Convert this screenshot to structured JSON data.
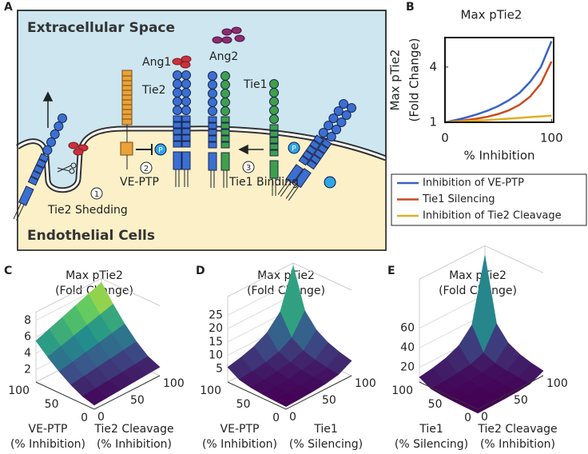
{
  "diagram": {
    "label": "A",
    "regions": [
      "Extracellular Space",
      "Endothelial Cells"
    ],
    "proteins": [
      "Ang1",
      "Ang2",
      "Tie2",
      "Tie1"
    ],
    "phospho": "P",
    "steps": [
      {
        "number": 1,
        "name": "Tie2 Shedding"
      },
      {
        "number": 2,
        "name": "VE-PTP"
      },
      {
        "number": 3,
        "name": "Tie1 Binding"
      }
    ]
  },
  "chart_data": [
    {
      "label": "B",
      "type": "line",
      "title": "Max pTie2",
      "ylabel": [
        "Max pTie2",
        "(Fold Change)"
      ],
      "xlabel": "% Inhibition",
      "x": [
        0,
        10,
        20,
        30,
        40,
        50,
        60,
        70,
        80,
        90,
        100
      ],
      "series": [
        {
          "name": "Inhibition of VE-PTP",
          "color": "#3a62c4",
          "values": [
            1,
            1.12,
            1.26,
            1.43,
            1.63,
            1.88,
            2.2,
            2.6,
            3.2,
            4.0,
            5.4
          ]
        },
        {
          "name": "Tie1 Silencing",
          "color": "#cc4a21",
          "values": [
            1,
            1.05,
            1.12,
            1.2,
            1.3,
            1.45,
            1.65,
            1.95,
            2.4,
            3.1,
            4.3
          ]
        },
        {
          "name": "Inhibition of Tie2 Cleavage",
          "color": "#e0b020",
          "values": [
            1,
            1.03,
            1.06,
            1.09,
            1.12,
            1.16,
            1.2,
            1.24,
            1.28,
            1.32,
            1.36
          ]
        }
      ],
      "xlim": [
        0,
        102
      ],
      "ylim": [
        1,
        5.6
      ],
      "xticks": [
        0,
        100
      ],
      "yticks": [
        1,
        4
      ],
      "legend": "below"
    },
    {
      "label": "C",
      "type": "surface",
      "title": [
        "Max pTie2",
        "(Fold Change)"
      ],
      "xlabel": [
        "VE-PTP",
        "(% Inhibition)"
      ],
      "ylabel": [
        "Tie2 Cleavage",
        "(% Inhibition)"
      ],
      "x": [
        0,
        20,
        40,
        60,
        80,
        100
      ],
      "y": [
        0,
        20,
        40,
        60,
        80,
        100
      ],
      "z": [
        [
          1,
          1.11,
          1.22,
          1.33,
          1.44,
          1.55
        ],
        [
          1.4,
          1.55,
          1.71,
          1.86,
          2.02,
          2.17
        ],
        [
          2.14,
          2.38,
          2.61,
          2.85,
          3.08,
          3.32
        ],
        [
          3.09,
          3.43,
          3.77,
          4.11,
          4.45,
          4.79
        ],
        [
          4.22,
          4.68,
          5.15,
          5.61,
          6.08,
          6.54
        ],
        [
          5.5,
          6.11,
          6.71,
          7.32,
          7.92,
          8.53
        ]
      ],
      "xlim": [
        0,
        100
      ],
      "ylim": [
        0,
        100
      ],
      "zlim": [
        0.5,
        9
      ],
      "xticks": [
        0,
        50,
        100
      ],
      "yticks": [
        0,
        50,
        100
      ],
      "zticks": [
        2,
        4,
        6,
        8
      ],
      "colormap": "viridis"
    },
    {
      "label": "D",
      "type": "surface",
      "title": [
        "Max pTie2",
        "(Fold Change)"
      ],
      "xlabel": [
        "VE-PTP",
        "(% Inhibition)"
      ],
      "ylabel": [
        "Tie1",
        "(% Silencing)"
      ],
      "x": [
        0,
        20,
        40,
        60,
        80,
        100
      ],
      "y": [
        0,
        20,
        40,
        60,
        80,
        100
      ],
      "z": [
        [
          1,
          1.2,
          1.49,
          1.97,
          2.91,
          5.56
        ],
        [
          1.2,
          1.44,
          1.79,
          2.36,
          3.49,
          6.67
        ],
        [
          1.49,
          1.79,
          2.22,
          2.94,
          4.34,
          8.28
        ],
        [
          1.97,
          2.36,
          2.94,
          3.88,
          5.73,
          10.95
        ],
        [
          2.91,
          3.49,
          4.34,
          5.73,
          8.47,
          16.18
        ],
        [
          5.56,
          6.67,
          8.28,
          10.95,
          16.18,
          30.91
        ]
      ],
      "xlim": [
        0,
        100
      ],
      "ylim": [
        0,
        100
      ],
      "zlim": [
        0,
        32
      ],
      "xticks": [
        0,
        50,
        100
      ],
      "yticks": [
        0,
        50,
        100
      ],
      "zticks": [
        5,
        10,
        15,
        20,
        25
      ],
      "colormap": "viridis"
    },
    {
      "label": "E",
      "type": "surface",
      "title": [
        "Max pTie2",
        "(Fold Change)"
      ],
      "xlabel": [
        "Tie1",
        "(% Silencing)"
      ],
      "ylabel": [
        "Tie2 Cleavage",
        "(% Inhibition)"
      ],
      "x": [
        0,
        20,
        40,
        60,
        80,
        100
      ],
      "y": [
        0,
        20,
        40,
        60,
        80,
        100
      ],
      "z": [
        [
          1,
          1.22,
          1.56,
          2.17,
          3.57,
          10
        ],
        [
          1.22,
          1.49,
          1.9,
          2.65,
          4.36,
          12.2
        ],
        [
          1.56,
          1.9,
          2.43,
          3.39,
          5.57,
          15.6
        ],
        [
          2.17,
          2.65,
          3.39,
          4.71,
          7.75,
          21.7
        ],
        [
          3.57,
          4.36,
          5.57,
          7.75,
          12.74,
          35.7
        ],
        [
          10,
          12.2,
          15.6,
          21.7,
          35.7,
          100
        ]
      ],
      "xlim": [
        0,
        100
      ],
      "ylim": [
        0,
        100
      ],
      "zlim": [
        5,
        110
      ],
      "xticks": [
        0,
        50,
        100
      ],
      "yticks": [
        0,
        50,
        100
      ],
      "zticks": [
        20,
        40,
        60
      ],
      "colormap": "viridis"
    }
  ]
}
